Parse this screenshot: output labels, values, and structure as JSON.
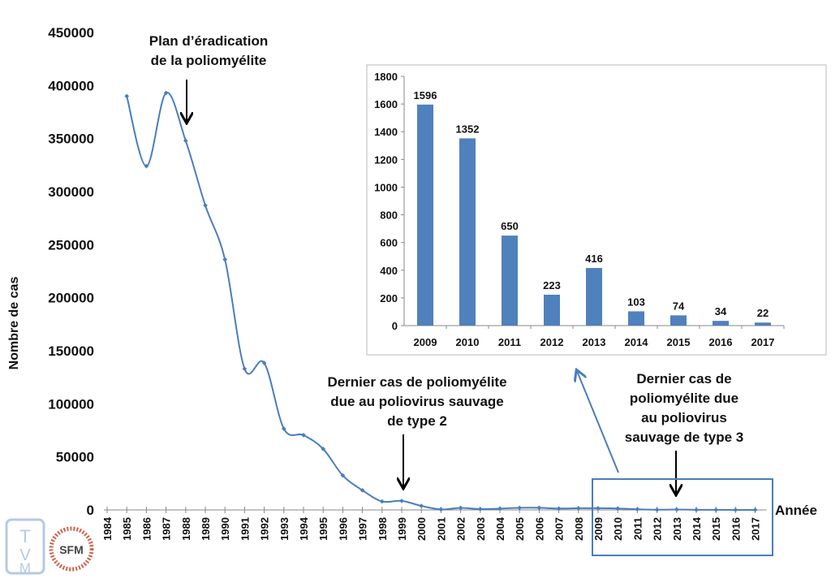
{
  "chart_data": [
    {
      "type": "line",
      "title": "",
      "xlabel": "Année",
      "ylabel": "Nombre de cas",
      "ylim": [
        0,
        450000
      ],
      "yticks": [
        "0",
        "50000",
        "100000",
        "150000",
        "200000",
        "250000",
        "300000",
        "350000",
        "400000",
        "450000"
      ],
      "xticks": [
        "1984",
        "1985",
        "1986",
        "1987",
        "1988",
        "1989",
        "1990",
        "1991",
        "1992",
        "1993",
        "1994",
        "1995",
        "1996",
        "1997",
        "1998",
        "1999",
        "2000",
        "2001",
        "2002",
        "2003",
        "2004",
        "2005",
        "2006",
        "2007",
        "2008",
        "2009",
        "2010",
        "2011",
        "2012",
        "2013",
        "2014",
        "2015",
        "2016",
        "2017"
      ],
      "series": [
        {
          "name": "Nombre de cas",
          "color": "#4a7ebb",
          "x": [
            1985,
            1986,
            1987,
            1988,
            1989,
            1990,
            1991,
            1992,
            1993,
            1994,
            1995,
            1996,
            1997,
            1998,
            1999,
            2000,
            2001,
            2002,
            2003,
            2004,
            2005,
            2006,
            2007,
            2008,
            2009,
            2010,
            2011,
            2012,
            2013,
            2014,
            2015,
            2016,
            2017
          ],
          "values": [
            390000,
            324000,
            393000,
            348000,
            287000,
            236000,
            133000,
            138500,
            76500,
            70500,
            57500,
            32500,
            18500,
            8000,
            8500,
            3800,
            483,
            1918,
            784,
            1255,
            1979,
            1997,
            1315,
            1651,
            1596,
            1352,
            650,
            223,
            416,
            103,
            74,
            34,
            22
          ]
        }
      ],
      "annotations": [
        {
          "text": [
            "Plan d’éradication",
            "de la poliomyélite"
          ],
          "year": 1988
        },
        {
          "text": [
            "Dernier cas de poliomyélite",
            "due au poliovirus sauvage",
            "de type 2"
          ],
          "year": 1999
        },
        {
          "text": [
            "Dernier cas de",
            "poliomyélite due",
            "au poliovirus",
            "sauvage de type 3"
          ],
          "year": 2013
        }
      ]
    },
    {
      "type": "bar",
      "title": "",
      "categories": [
        "2009",
        "2010",
        "2011",
        "2012",
        "2013",
        "2014",
        "2015",
        "2016",
        "2017"
      ],
      "values": [
        1596,
        1352,
        650,
        223,
        416,
        103,
        74,
        34,
        22
      ],
      "data_labels": [
        "1596",
        "1352",
        "650",
        "223",
        "416",
        "103",
        "74",
        "34",
        "22"
      ],
      "ylim": [
        0,
        1800
      ],
      "yticks": [
        "0",
        "200",
        "400",
        "600",
        "800",
        "1000",
        "1200",
        "1400",
        "1600",
        "1800"
      ],
      "color": "#4f81bd"
    }
  ],
  "logos": [
    "TVM",
    "SFM"
  ]
}
